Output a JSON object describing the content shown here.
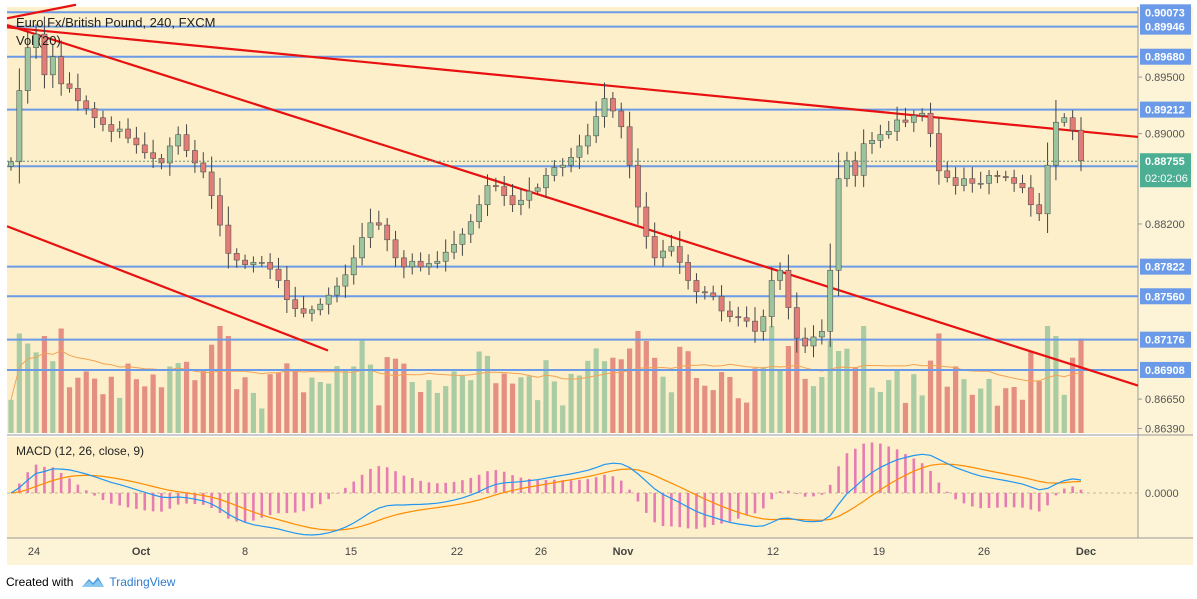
{
  "header": {
    "symbol_title": "Euro Fx/British Pound, 240, FXCM",
    "volume_label": "Vol (20)"
  },
  "macd_label": "MACD (12, 26, close, 9)",
  "footer": {
    "created_with": "Created with",
    "brand": "TradingView"
  },
  "colors": {
    "background": "#fcefc9",
    "up_candle": "#9bc59d",
    "down_candle": "#e17d76",
    "wick": "#444444",
    "trendline": "#e81010",
    "hline": "#6b9be8",
    "price_tag_bg": "#6b9be8",
    "last_price_bg": "#4caf93",
    "macd_line": "#2196f3",
    "signal_line": "#ff8c00",
    "histogram": "#e57cb2",
    "volume_ma": "#f5a252"
  },
  "chart_data": {
    "type": "candlestick",
    "title": "Euro Fx/British Pound, 240, FXCM",
    "x_tick_labels": [
      "24",
      "Oct",
      "8",
      "15",
      "22",
      "26",
      "Nov",
      "12",
      "19",
      "26",
      "Dec"
    ],
    "price_axis_labels": [
      "0.89500",
      "0.89000",
      "0.88200",
      "0.86650",
      "0.86390"
    ],
    "horizontal_levels": [
      "0.90073",
      "0.89946",
      "0.89680",
      "0.89212",
      "0.88711",
      "0.87822",
      "0.87560",
      "0.87176",
      "0.86908"
    ],
    "last_price": "0.88755",
    "countdown": "02:02:06",
    "ylim": [
      0.8635,
      0.9012
    ],
    "macd_zero_label": "0.0000",
    "close": [
      0.8875,
      0.8938,
      0.8976,
      0.8988,
      0.8952,
      0.8968,
      0.8944,
      0.894,
      0.8929,
      0.8922,
      0.8914,
      0.8908,
      0.8902,
      0.8904,
      0.8896,
      0.889,
      0.8883,
      0.8878,
      0.8874,
      0.8889,
      0.8899,
      0.8885,
      0.8874,
      0.8866,
      0.8845,
      0.8819,
      0.8794,
      0.8788,
      0.8784,
      0.8786,
      0.8786,
      0.878,
      0.877,
      0.8753,
      0.8745,
      0.8741,
      0.8744,
      0.8749,
      0.8757,
      0.8765,
      0.8775,
      0.879,
      0.8808,
      0.8821,
      0.8819,
      0.8806,
      0.879,
      0.8782,
      0.8787,
      0.8782,
      0.8785,
      0.8787,
      0.8795,
      0.8802,
      0.8811,
      0.8822,
      0.8837,
      0.8854,
      0.8853,
      0.8845,
      0.8837,
      0.8841,
      0.8849,
      0.8852,
      0.8863,
      0.887,
      0.8872,
      0.8879,
      0.8889,
      0.8898,
      0.8915,
      0.8931,
      0.892,
      0.8906,
      0.8872,
      0.8835,
      0.8809,
      0.879,
      0.8796,
      0.88,
      0.8786,
      0.877,
      0.876,
      0.8759,
      0.8756,
      0.8743,
      0.8738,
      0.8737,
      0.8734,
      0.8725,
      0.8738,
      0.877,
      0.8779,
      0.8746,
      0.8719,
      0.8712,
      0.872,
      0.8725,
      0.8779,
      0.886,
      0.8876,
      0.8863,
      0.8891,
      0.8894,
      0.8899,
      0.8902,
      0.8912,
      0.891,
      0.8916,
      0.8918,
      0.89,
      0.8867,
      0.8861,
      0.8854,
      0.886,
      0.8856,
      0.8856,
      0.8863,
      0.8862,
      0.8861,
      0.8856,
      0.8852,
      0.8837,
      0.8829,
      0.8872,
      0.891,
      0.8914,
      0.8903,
      0.8876
    ]
  }
}
